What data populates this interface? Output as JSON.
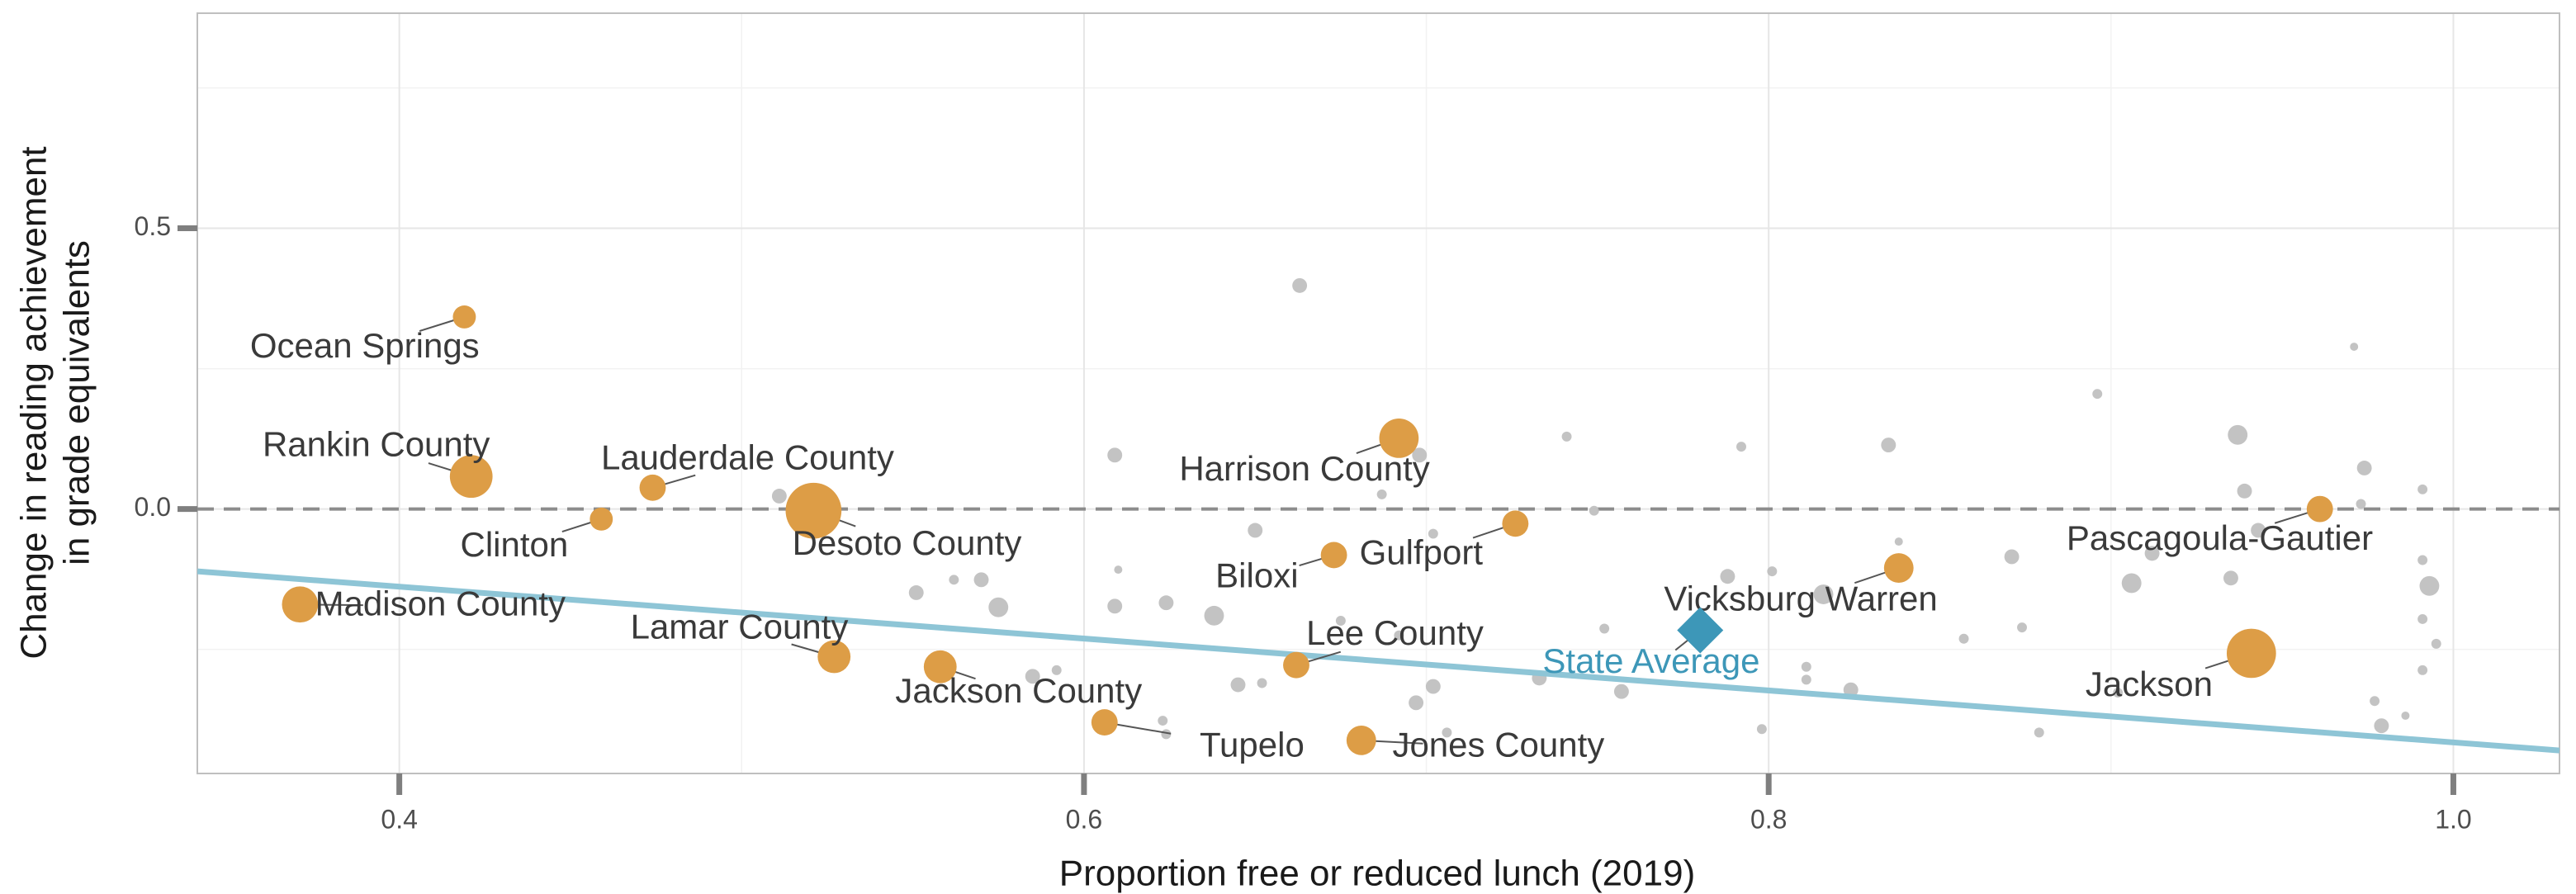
{
  "chart_data": {
    "type": "scatter",
    "x_label": "Proportion free or reduced lunch (2019)",
    "y_label": [
      "Change in reading achievement",
      "in grade equivalents"
    ],
    "xlim": [
      0.341,
      1.031
    ],
    "ylim": [
      -0.471,
      0.883
    ],
    "xticks": [
      0.4,
      0.6,
      0.8,
      {
        "value": 1,
        "label": "1.0"
      }
    ],
    "yticks": [
      {
        "value": 0,
        "label": "0.0"
      },
      0.5
    ],
    "minor_xticks": [
      0.5,
      0.7,
      0.9
    ],
    "minor_yticks": [
      -0.25,
      0.25,
      0.75
    ],
    "grid": true,
    "reference_line": {
      "y": 0,
      "color": "#8c8c8c"
    },
    "trend_line": {
      "x": [
        0.341,
        1.031
      ],
      "y": [
        -0.111,
        -0.43
      ],
      "color": "#8ec5d6"
    },
    "other_points": {
      "color": "#bdbdbd",
      "x": [
        0.663,
        0.971,
        0.896,
        0.937,
        0.741,
        0.792,
        0.835,
        0.974,
        0.939,
        0.991,
        0.609,
        0.511,
        0.687,
        0.698,
        0.973,
        0.749,
        0.65,
        0.702,
        0.943,
        0.838,
        0.912,
        0.871,
        0.991,
        0.788,
        0.801,
        0.935,
        0.906,
        0.993,
        0.61,
        0.551,
        0.562,
        0.57,
        0.575,
        0.609,
        0.624,
        0.638,
        0.816,
        0.991,
        0.995,
        0.752,
        0.857,
        0.874,
        0.675,
        0.692,
        0.811,
        0.811,
        0.991,
        0.592,
        0.585,
        0.645,
        0.652,
        0.702,
        0.733,
        0.824,
        0.757,
        0.902,
        0.697,
        0.977,
        0.986,
        0.979,
        0.623,
        0.624,
        0.706,
        0.798,
        0.879
      ],
      "y": [
        0.398,
        0.289,
        0.205,
        0.132,
        0.129,
        0.111,
        0.114,
        0.073,
        0.032,
        0.035,
        0.096,
        0.023,
        0.026,
        0.096,
        0.009,
        -0.003,
        -0.038,
        -0.044,
        -0.038,
        -0.058,
        -0.079,
        -0.085,
        -0.091,
        -0.12,
        -0.111,
        -0.123,
        -0.132,
        -0.137,
        -0.108,
        -0.149,
        -0.126,
        -0.126,
        -0.175,
        -0.173,
        -0.167,
        -0.19,
        -0.152,
        -0.196,
        -0.24,
        -0.213,
        -0.231,
        -0.211,
        -0.199,
        -0.225,
        -0.281,
        -0.304,
        -0.287,
        -0.287,
        -0.298,
        -0.313,
        -0.31,
        -0.316,
        -0.301,
        -0.322,
        -0.325,
        -0.327,
        -0.345,
        -0.342,
        -0.368,
        -0.386,
        -0.377,
        -0.401,
        -0.398,
        -0.392,
        -0.398
      ],
      "sizes": [
        4.5,
        2.5,
        3,
        6,
        3,
        3,
        4.5,
        4.5,
        4.5,
        3,
        4.5,
        4.5,
        3,
        4.5,
        3,
        3,
        4.5,
        3,
        4.5,
        2.5,
        4.5,
        4.5,
        3,
        4.5,
        3,
        4.5,
        6,
        6,
        2.5,
        4.5,
        3,
        4.5,
        6,
        4.5,
        4.5,
        6,
        6,
        3,
        3,
        3,
        3,
        3,
        3,
        3,
        3,
        3,
        3,
        3,
        4.5,
        4.5,
        3,
        4.5,
        4.5,
        4.5,
        4.5,
        3,
        4.5,
        3,
        2.5,
        4.5,
        3,
        3,
        3,
        3,
        3
      ]
    },
    "points": {
      "color": "#dd9d46",
      "labels": [
        "Ocean Springs",
        "Rankin County",
        "Lauderdale County",
        "Clinton",
        "Desoto County",
        "Madison County",
        "Lamar County",
        "Jackson County",
        "Tupelo",
        "Jones County",
        "Lee County",
        "Biloxi",
        "Harrison County",
        "Gulfport",
        "Vicksburg Warren",
        "Pascagoula-Gautier",
        "Jackson"
      ],
      "x": [
        0.419,
        0.421,
        0.474,
        0.459,
        0.521,
        0.371,
        0.527,
        0.558,
        0.606,
        0.681,
        0.662,
        0.673,
        0.692,
        0.726,
        0.838,
        0.961,
        0.941
      ],
      "y": [
        0.342,
        0.058,
        0.038,
        -0.018,
        -0.003,
        -0.17,
        -0.263,
        -0.281,
        -0.38,
        -0.412,
        -0.278,
        -0.082,
        0.126,
        -0.026,
        -0.105,
        0.0,
        -0.257
      ],
      "sizes": [
        7,
        13,
        8,
        7,
        17,
        11,
        10,
        10,
        8,
        9,
        8,
        8,
        12,
        8,
        9,
        8,
        15
      ]
    },
    "state_average": {
      "label": "State Average",
      "x": 0.78,
      "y": -0.216,
      "color": "#3d97b8"
    }
  }
}
